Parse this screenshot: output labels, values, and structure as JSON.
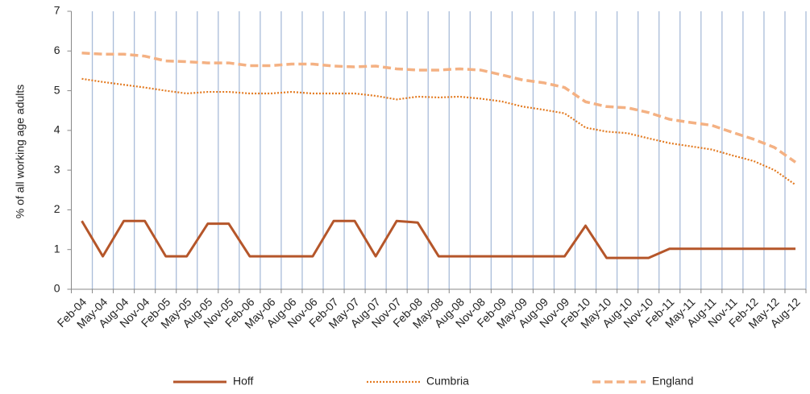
{
  "chart_data": {
    "type": "line",
    "y_label": "% of all working age adults",
    "categories": [
      "Feb-04",
      "May-04",
      "Aug-04",
      "Nov-04",
      "Feb-05",
      "May-05",
      "Aug-05",
      "Nov-05",
      "Feb-06",
      "May-06",
      "Aug-06",
      "Nov-06",
      "Feb-07",
      "May-07",
      "Aug-07",
      "Nov-07",
      "Feb-08",
      "May-08",
      "Aug-08",
      "Nov-08",
      "Feb-09",
      "May-09",
      "Aug-09",
      "Nov-09",
      "Feb-10",
      "May-10",
      "Aug-10",
      "Nov-10",
      "Feb-11",
      "May-11",
      "Aug-11",
      "Nov-11",
      "Feb-12",
      "May-12",
      "Aug-12"
    ],
    "series": [
      {
        "name": "Hoff",
        "color": "#b5562a",
        "dash": "solid",
        "values": [
          1.72,
          0.83,
          1.72,
          1.72,
          0.83,
          0.83,
          1.65,
          1.65,
          0.83,
          0.83,
          0.83,
          0.83,
          1.72,
          1.72,
          0.83,
          1.72,
          1.68,
          0.83,
          0.83,
          0.83,
          0.83,
          0.83,
          0.83,
          0.83,
          1.6,
          0.79,
          0.79,
          0.79,
          1.02,
          1.02,
          1.02,
          1.02,
          1.02,
          1.02,
          1.02
        ]
      },
      {
        "name": "Cumbria",
        "color": "#e37b22",
        "dash": "dotted",
        "values": [
          5.3,
          5.22,
          5.15,
          5.08,
          5.0,
          4.93,
          4.97,
          4.97,
          4.93,
          4.93,
          4.97,
          4.93,
          4.93,
          4.93,
          4.87,
          4.78,
          4.85,
          4.83,
          4.85,
          4.8,
          4.73,
          4.6,
          4.52,
          4.43,
          4.07,
          3.97,
          3.93,
          3.8,
          3.68,
          3.6,
          3.52,
          3.37,
          3.23,
          3.0,
          2.63
        ]
      },
      {
        "name": "England",
        "color": "#f4b183",
        "dash": "dashed",
        "values": [
          5.95,
          5.92,
          5.92,
          5.87,
          5.75,
          5.73,
          5.7,
          5.7,
          5.63,
          5.63,
          5.67,
          5.67,
          5.62,
          5.6,
          5.62,
          5.55,
          5.52,
          5.52,
          5.55,
          5.52,
          5.4,
          5.27,
          5.2,
          5.08,
          4.72,
          4.6,
          4.57,
          4.45,
          4.28,
          4.2,
          4.13,
          3.95,
          3.78,
          3.57,
          3.2
        ]
      }
    ],
    "ylim": [
      0,
      7
    ],
    "yticks": [
      0,
      1,
      2,
      3,
      4,
      5,
      6,
      7
    ],
    "vertical_grid": true,
    "grid_color": "#a9bcd9",
    "legend": "bottom"
  }
}
